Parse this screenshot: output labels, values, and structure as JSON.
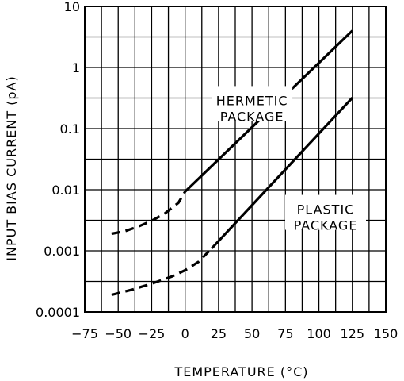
{
  "chart_data": {
    "type": "line",
    "title": "",
    "xlabel": "TEMPERATURE (°C)",
    "ylabel": "INPUT BIAS CURRENT (pA)",
    "xlim": [
      -75,
      150
    ],
    "ylim": [
      0.0001,
      10
    ],
    "yscale": "log",
    "grid": true,
    "x_ticks": [
      -75,
      -50,
      -25,
      0,
      25,
      50,
      75,
      100,
      125,
      150
    ],
    "x_tick_labels": [
      "−75",
      "−50",
      "−25",
      "0",
      "25",
      "50",
      "75",
      "100",
      "125",
      "150"
    ],
    "y_ticks": [
      0.0001,
      0.001,
      0.01,
      0.1,
      1,
      10
    ],
    "y_tick_labels": [
      "0.0001",
      "0.001",
      "0.01",
      "0.1",
      "1",
      "10"
    ],
    "series": [
      {
        "annotation": [
          "HERMETIC",
          "PACKAGE"
        ],
        "dashed": {
          "x": [
            -55,
            -45,
            -35,
            -25,
            -15,
            -5,
            0
          ],
          "y": [
            0.0019,
            0.0021,
            0.0025,
            0.0031,
            0.0041,
            0.0061,
            0.0093
          ]
        },
        "solid": {
          "x": [
            0,
            125
          ],
          "y": [
            0.0093,
            4
          ]
        }
      },
      {
        "annotation": [
          "PLASTIC",
          "PACKAGE"
        ],
        "dashed": {
          "x": [
            -55,
            -40,
            -25,
            -10,
            0,
            10,
            20
          ],
          "y": [
            0.00019,
            0.00023,
            0.00029,
            0.00038,
            0.00048,
            0.00066,
            0.0011
          ]
        },
        "solid": {
          "x": [
            20,
            125
          ],
          "y": [
            0.0011,
            0.32
          ]
        }
      }
    ],
    "annotations": [
      {
        "text": [
          "HERMETIC",
          "PACKAGE"
        ],
        "x": 50,
        "y": 0.29
      },
      {
        "text": [
          "PLASTIC",
          "PACKAGE"
        ],
        "x": 105,
        "y": 0.0048
      }
    ]
  }
}
